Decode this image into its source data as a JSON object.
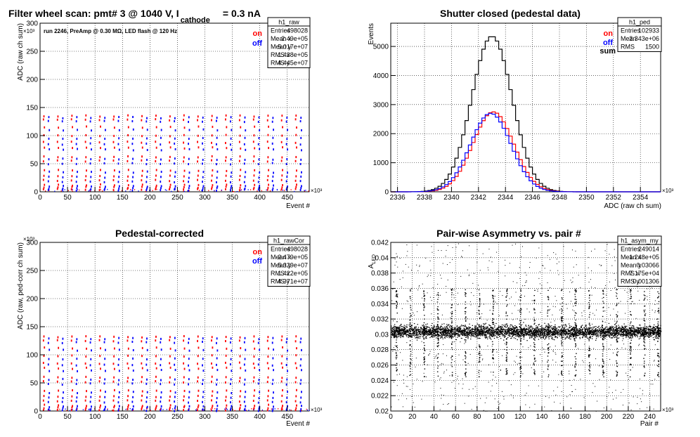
{
  "chart_data": [
    {
      "id": "raw",
      "type": "scatter",
      "title": "Filter wheel scan: pmt#   3 @  1040 V, I",
      "title_sub": "cathode",
      "title_tail": "= 0.3 nA",
      "annotation": "run 2246, PreAmp @ 0.30 MΩ, LED flash @  120 Hz",
      "xlabel": "Event #",
      "ylabel": "ADC (raw ch sum)",
      "x_multiplier": "×10³",
      "y_multiplier": "×10³",
      "xlim": [
        0,
        490
      ],
      "ylim": [
        0,
        300
      ],
      "xticks": [
        0,
        50,
        100,
        150,
        200,
        250,
        300,
        350,
        400,
        450
      ],
      "yticks": [
        0,
        50,
        100,
        150,
        200,
        250,
        300
      ],
      "grid": true,
      "legend": {
        "position": "top-right",
        "entries": [
          {
            "label": "on",
            "color": "#ff0000"
          },
          {
            "label": "off",
            "color": "#0000ff"
          }
        ]
      },
      "stats": {
        "name": "h1_raw",
        "rows": [
          [
            "Entries",
            "498028"
          ],
          [
            "Mean x",
            "2.49e+05"
          ],
          [
            "Mean y",
            "5.017e+07"
          ],
          [
            "RMS x",
            "1.438e+05"
          ],
          [
            "RMS y",
            "4.445e+07"
          ]
        ]
      },
      "steps": {
        "period": 25.5,
        "levels_on": [
          4,
          8,
          12,
          20,
          28,
          38,
          55,
          62,
          78,
          88,
          100,
          115,
          128,
          135
        ],
        "levels_off": [
          3,
          6,
          10,
          18,
          26,
          35,
          50,
          58,
          75,
          85,
          95,
          110,
          125,
          132
        ]
      }
    },
    {
      "id": "ped",
      "type": "histogram",
      "title": "Shutter closed (pedestal data)",
      "xlabel": "ADC (raw ch sum)",
      "ylabel": "Events",
      "x_multiplier": "×10³",
      "xlim": [
        2335.5,
        2355.5
      ],
      "ylim": [
        0,
        5800
      ],
      "xticks": [
        2336,
        2338,
        2340,
        2342,
        2344,
        2346,
        2348,
        2350,
        2352,
        2354
      ],
      "yticks": [
        0,
        1000,
        2000,
        3000,
        4000,
        5000
      ],
      "grid": true,
      "legend": {
        "position": "top-right",
        "entries": [
          {
            "label": "on",
            "color": "#ff0000"
          },
          {
            "label": "off",
            "color": "#0000ff"
          },
          {
            "label": "sum",
            "color": "#000000"
          }
        ]
      },
      "stats": {
        "name": "h1_ped",
        "rows": [
          [
            "Entries",
            "102933"
          ],
          [
            "Mean",
            "2.343e+06"
          ],
          [
            "RMS",
            "1500"
          ]
        ]
      },
      "series": [
        {
          "name": "sum",
          "color": "#000000",
          "mean": 2343.0,
          "sigma": 1.5,
          "peak": 5350
        },
        {
          "name": "on",
          "color": "#ff0000",
          "mean": 2343.1,
          "sigma": 1.5,
          "peak": 2750
        },
        {
          "name": "off",
          "color": "#0000ff",
          "mean": 2342.9,
          "sigma": 1.5,
          "peak": 2700
        }
      ]
    },
    {
      "id": "cor",
      "type": "scatter",
      "title": "Pedestal-corrected",
      "xlabel": "Event #",
      "ylabel": "ADC (raw, ped-corr ch sum)",
      "x_multiplier": "×10³",
      "y_multiplier": "×10³",
      "xlim": [
        0,
        490
      ],
      "ylim": [
        0,
        300
      ],
      "xticks": [
        0,
        50,
        100,
        150,
        200,
        250,
        300,
        350,
        400,
        450
      ],
      "yticks": [
        0,
        50,
        100,
        150,
        200,
        250,
        300
      ],
      "grid": true,
      "legend": {
        "position": "top-right",
        "entries": [
          {
            "label": "on",
            "color": "#ff0000"
          },
          {
            "label": "off",
            "color": "#0000ff"
          }
        ]
      },
      "stats": {
        "name": "h1_rawCor",
        "rows": [
          [
            "Entries",
            "498028"
          ],
          [
            "Mean x",
            "2.479e+05"
          ],
          [
            "Mean y",
            "5.329e+07"
          ],
          [
            "RMS x",
            "1.422e+05"
          ],
          [
            "RMS y",
            "4.371e+07"
          ]
        ]
      },
      "steps": {
        "period": 25.5,
        "levels_on": [
          2,
          6,
          10,
          18,
          26,
          36,
          52,
          60,
          76,
          85,
          98,
          112,
          125,
          132
        ],
        "levels_off": [
          1,
          4,
          8,
          16,
          24,
          33,
          48,
          56,
          72,
          82,
          93,
          108,
          122,
          129
        ]
      }
    },
    {
      "id": "asym",
      "type": "scatter",
      "title": "Pair-wise Asymmetry vs. pair #",
      "xlabel": "Pair #",
      "ylabel": "A",
      "ylabel_sub": "LED",
      "x_multiplier": "×10³",
      "xlim": [
        0,
        250
      ],
      "ylim": [
        0.02,
        0.042
      ],
      "xticks": [
        0,
        20,
        40,
        60,
        80,
        100,
        120,
        140,
        160,
        180,
        200,
        220,
        240
      ],
      "yticks": [
        0.02,
        0.022,
        0.024,
        0.026,
        0.028,
        0.03,
        0.032,
        0.034,
        0.036,
        0.038,
        0.04,
        0.042
      ],
      "grid": true,
      "stats": {
        "name": "h1_asym_my",
        "rows": [
          [
            "Entries",
            "249014"
          ],
          [
            "Mean x",
            "1.248e+05"
          ],
          [
            "Mean y",
            "0.03066"
          ],
          [
            "RMS x",
            "7.175e+04"
          ],
          [
            "RMS y",
            "0.001306"
          ]
        ]
      },
      "band": {
        "center": 0.0304,
        "width": 0.0016,
        "spike_period": 12.75,
        "spike_low": 0.0245,
        "spike_high": 0.036
      }
    }
  ]
}
